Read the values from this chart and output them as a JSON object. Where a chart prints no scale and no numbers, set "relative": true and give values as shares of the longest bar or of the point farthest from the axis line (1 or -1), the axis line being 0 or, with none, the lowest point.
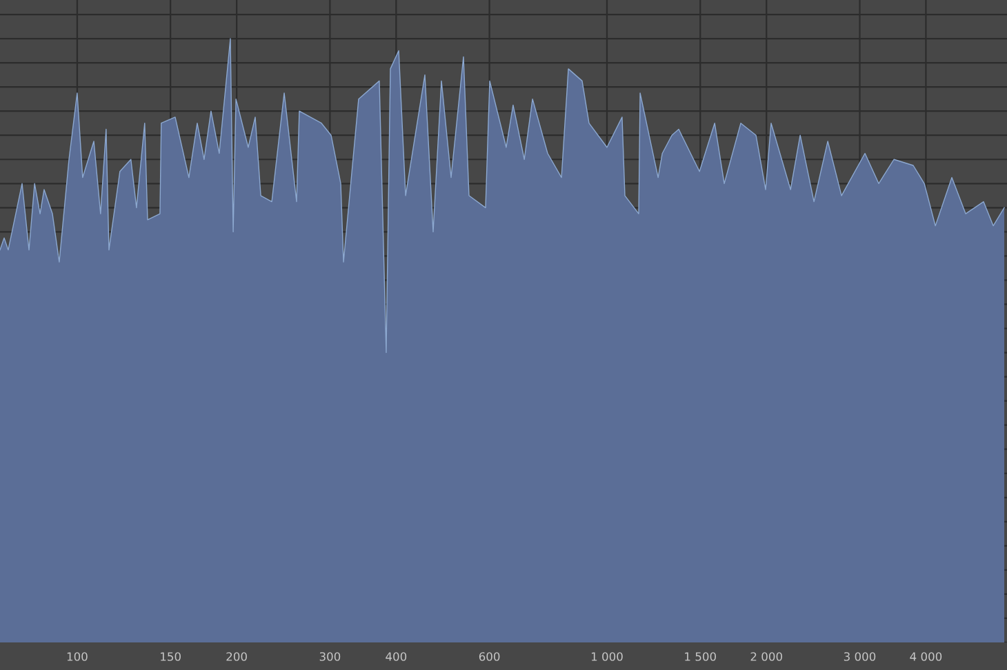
{
  "chart_data": {
    "type": "area",
    "relative": true,
    "log": "x",
    "grid": true,
    "xlim": [
      71.5,
      5690
    ],
    "xticks": [
      100,
      150,
      200,
      300,
      400,
      600,
      {
        "value": 1000,
        "label": "1 000"
      },
      {
        "value": 1500,
        "label": "1 500"
      },
      {
        "value": 2000,
        "label": "2 000"
      },
      {
        "value": 3000,
        "label": "3 000"
      },
      {
        "value": 4000,
        "label": "4 000"
      }
    ],
    "series": [
      {
        "color": "#5b6e97",
        "x": [
          71.5,
          72.8,
          74.1,
          78.7,
          81.1,
          83.1,
          85.1,
          86.6,
          89.8,
          92.5,
          96.5,
          100,
          102.4,
          107.5,
          110.7,
          113.4,
          114.8,
          120.4,
          126.3,
          129.4,
          134.1,
          135.8,
          143.3,
          144.1,
          153.1,
          162.5,
          168.5,
          173.6,
          178.9,
          185.4,
          194.6,
          197.0,
          199.4,
          210.3,
          216.8,
          222.1,
          233.0,
          245.9,
          259.5,
          262.6,
          289.1,
          301.5,
          314.4,
          318.2,
          339.8,
          371.8,
          383.1,
          390.1,
          404.5,
          416.8,
          453.2,
          469.8,
          487.0,
          507.9,
          536.0,
          549.0,
          590.0,
          600.7,
          645.4,
          665.0,
          698.2,
          723.6,
          772.7,
          820.6,
          845.6,
          897.7,
          925.0,
          1000,
          1068,
          1081,
          1148,
          1155,
          1249,
          1272,
          1326,
          1366,
          1495,
          1597,
          1665,
          1789,
          1911,
          1993,
          2041,
          2221,
          2316,
          2459,
          2611,
          2772,
          3069,
          3258,
          3481,
          3785,
          3972,
          4168,
          4477,
          4754,
          5138,
          5360,
          5623
        ],
        "values": [
          0.65,
          0.67,
          0.65,
          0.76,
          0.65,
          0.76,
          0.71,
          0.75,
          0.71,
          0.63,
          0.8,
          0.91,
          0.77,
          0.83,
          0.71,
          0.85,
          0.65,
          0.78,
          0.8,
          0.72,
          0.86,
          0.7,
          0.71,
          0.86,
          0.87,
          0.77,
          0.86,
          0.8,
          0.88,
          0.81,
          1.0,
          0.68,
          0.9,
          0.82,
          0.87,
          0.74,
          0.73,
          0.91,
          0.73,
          0.88,
          0.86,
          0.84,
          0.76,
          0.63,
          0.9,
          0.93,
          0.48,
          0.95,
          0.98,
          0.74,
          0.94,
          0.68,
          0.93,
          0.77,
          0.97,
          0.74,
          0.72,
          0.93,
          0.82,
          0.89,
          0.8,
          0.9,
          0.81,
          0.77,
          0.95,
          0.93,
          0.86,
          0.82,
          0.87,
          0.74,
          0.71,
          0.91,
          0.77,
          0.81,
          0.84,
          0.85,
          0.78,
          0.86,
          0.76,
          0.86,
          0.84,
          0.75,
          0.86,
          0.75,
          0.84,
          0.73,
          0.83,
          0.74,
          0.81,
          0.76,
          0.8,
          0.79,
          0.76,
          0.69,
          0.77,
          0.71,
          0.73,
          0.69,
          0.72
        ]
      }
    ]
  }
}
